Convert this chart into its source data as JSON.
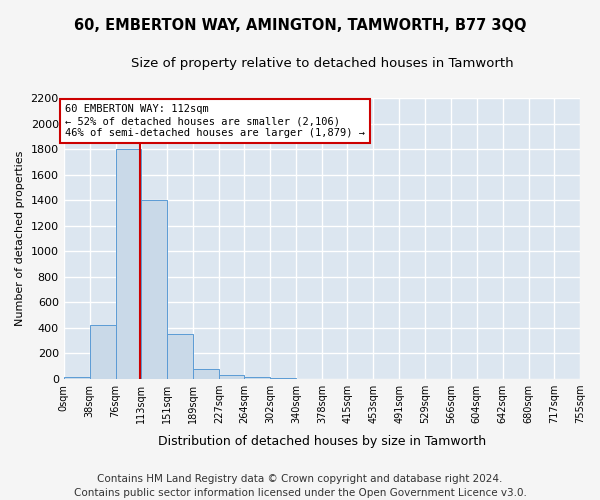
{
  "title": "60, EMBERTON WAY, AMINGTON, TAMWORTH, B77 3QQ",
  "subtitle": "Size of property relative to detached houses in Tamworth",
  "xlabel": "Distribution of detached houses by size in Tamworth",
  "ylabel": "Number of detached properties",
  "bin_edges": [
    0,
    38,
    76,
    113,
    151,
    189,
    227,
    264,
    302,
    340,
    378,
    415,
    453,
    491,
    529,
    566,
    604,
    642,
    680,
    717,
    755
  ],
  "bin_heights": [
    15,
    420,
    1800,
    1400,
    350,
    80,
    30,
    15,
    5,
    0,
    0,
    0,
    0,
    0,
    0,
    0,
    0,
    0,
    0,
    0
  ],
  "bar_color": "#c9d9e8",
  "bar_edge_color": "#5b9bd5",
  "property_size": 112,
  "vline_color": "#cc0000",
  "annotation_text": "60 EMBERTON WAY: 112sqm\n← 52% of detached houses are smaller (2,106)\n46% of semi-detached houses are larger (1,879) →",
  "annotation_box_color": "#cc0000",
  "ylim": [
    0,
    2200
  ],
  "yticks": [
    0,
    200,
    400,
    600,
    800,
    1000,
    1200,
    1400,
    1600,
    1800,
    2000,
    2200
  ],
  "bg_color": "#dce6f0",
  "grid_color": "#ffffff",
  "fig_bg_color": "#f5f5f5",
  "title_fontsize": 10.5,
  "subtitle_fontsize": 9.5,
  "footer_text": "Contains HM Land Registry data © Crown copyright and database right 2024.\nContains public sector information licensed under the Open Government Licence v3.0.",
  "footer_fontsize": 7.5
}
